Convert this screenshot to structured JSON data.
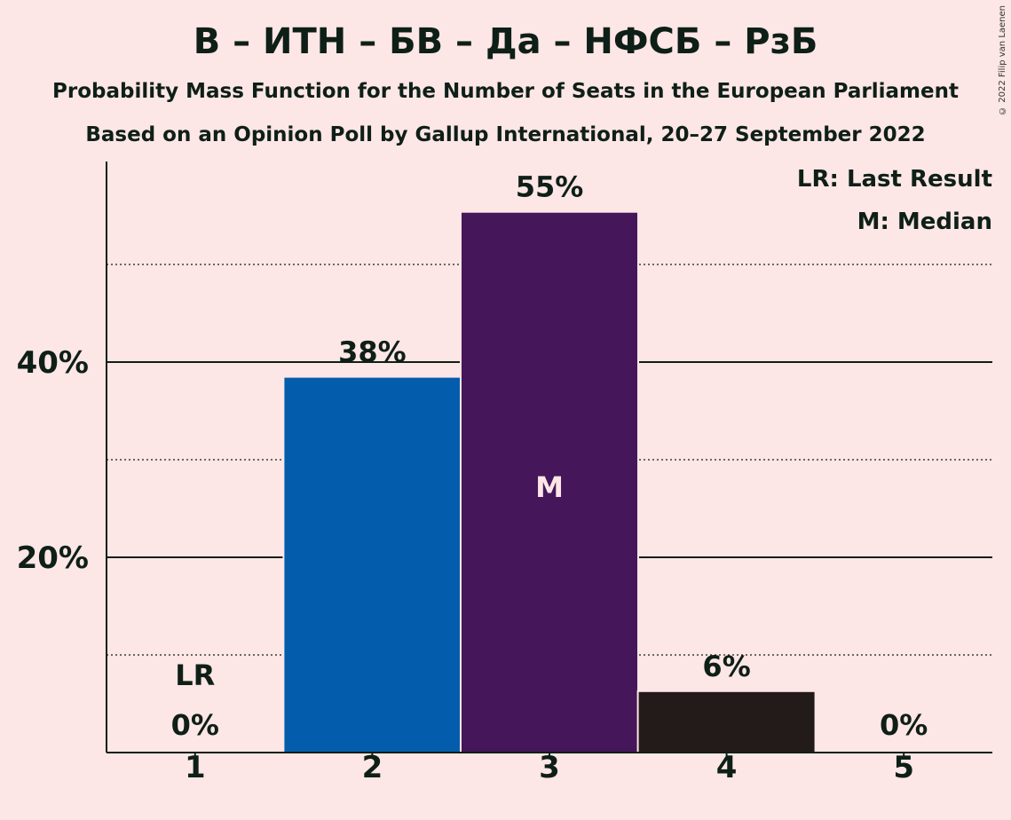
{
  "title": "В – ИТН – БВ – Да – НФСБ – РзБ",
  "subtitle1": "Probability Mass Function for the Number of Seats in the European Parliament",
  "subtitle2": "Based on an Opinion Poll by Gallup International, 20–27 September 2022",
  "copyright": "© 2022 Filip van Laenen",
  "legend": {
    "last_result": "LR: Last Result",
    "median": "M: Median"
  },
  "colors": {
    "background": "#FDE6E6",
    "text": "#0E1F17"
  },
  "chart_data": {
    "type": "bar",
    "categories": [
      "1",
      "2",
      "3",
      "4",
      "5"
    ],
    "values": [
      0,
      38.4,
      55.3,
      6.2,
      0
    ],
    "labels": [
      "0%",
      "38%",
      "55%",
      "6%",
      "0%"
    ],
    "bar_colors": [
      "#0E1F17",
      "#045DAC",
      "#45165A",
      "#221B19",
      "#0E1F17"
    ],
    "ylim": [
      0,
      60
    ],
    "yticks": [
      {
        "value": 20,
        "label": "20%"
      },
      {
        "value": 40,
        "label": "40%"
      }
    ],
    "minor_gridlines": [
      10,
      30,
      50
    ],
    "last_result_category": "1",
    "last_result_label": "LR",
    "median_category": "3",
    "median_label": "M",
    "legend_position": "top-right"
  }
}
